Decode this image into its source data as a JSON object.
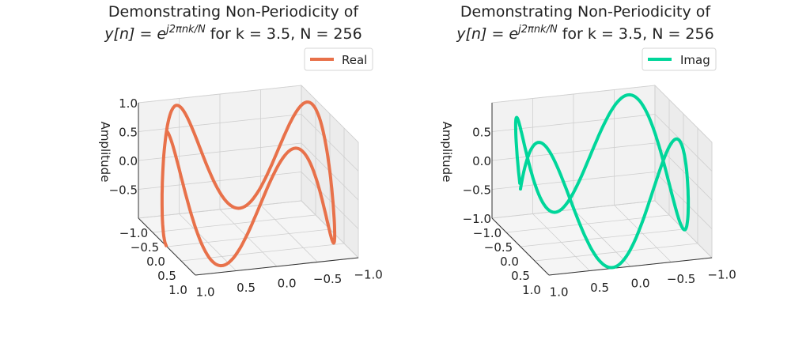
{
  "chart_data": [
    {
      "type": "line3d",
      "title": {
        "line1": "Demonstrating Non-Periodicity of",
        "math_base": "y[n] = e",
        "math_sup": "j2πnk/N",
        "math_rest": " for k = 3.5, N = 256"
      },
      "zlabel": "Amplitude",
      "N": 256,
      "k": 3.5,
      "series": [
        {
          "name": "Real",
          "component": "real",
          "color": "#E8714A"
        }
      ],
      "x_ticks": [
        "1.0",
        "0.5",
        "0.0",
        "−0.5",
        "−1.0"
      ],
      "y_ticks": [
        "−1.0",
        "−0.5",
        "0.0",
        "0.5",
        "1.0"
      ],
      "z_ticks": [
        "−0.5",
        "0.0",
        "0.5",
        "1.0"
      ],
      "xlim": [
        -1,
        1
      ],
      "ylim": [
        -1,
        1
      ],
      "zlim": [
        -1,
        1
      ],
      "grid": true,
      "legend": "top-right"
    },
    {
      "type": "line3d",
      "title": {
        "line1": "Demonstrating Non-Periodicity of",
        "math_base": "y[n] = e",
        "math_sup": "j2πnk/N",
        "math_rest": " for k = 3.5, N = 256"
      },
      "zlabel": "Amplitude",
      "N": 256,
      "k": 3.5,
      "series": [
        {
          "name": "Imag",
          "component": "imag",
          "color": "#00D69A"
        }
      ],
      "x_ticks": [
        "1.0",
        "0.5",
        "0.0",
        "−0.5",
        "−1.0"
      ],
      "y_ticks": [
        "−1.0",
        "−0.5",
        "0.0",
        "0.5",
        "1.0"
      ],
      "z_ticks": [
        "−1.0",
        "−0.5",
        "0.0",
        "0.5"
      ],
      "xlim": [
        -1,
        1
      ],
      "ylim": [
        -1,
        1
      ],
      "zlim": [
        -1,
        1
      ],
      "grid": true,
      "legend": "top-right"
    }
  ]
}
